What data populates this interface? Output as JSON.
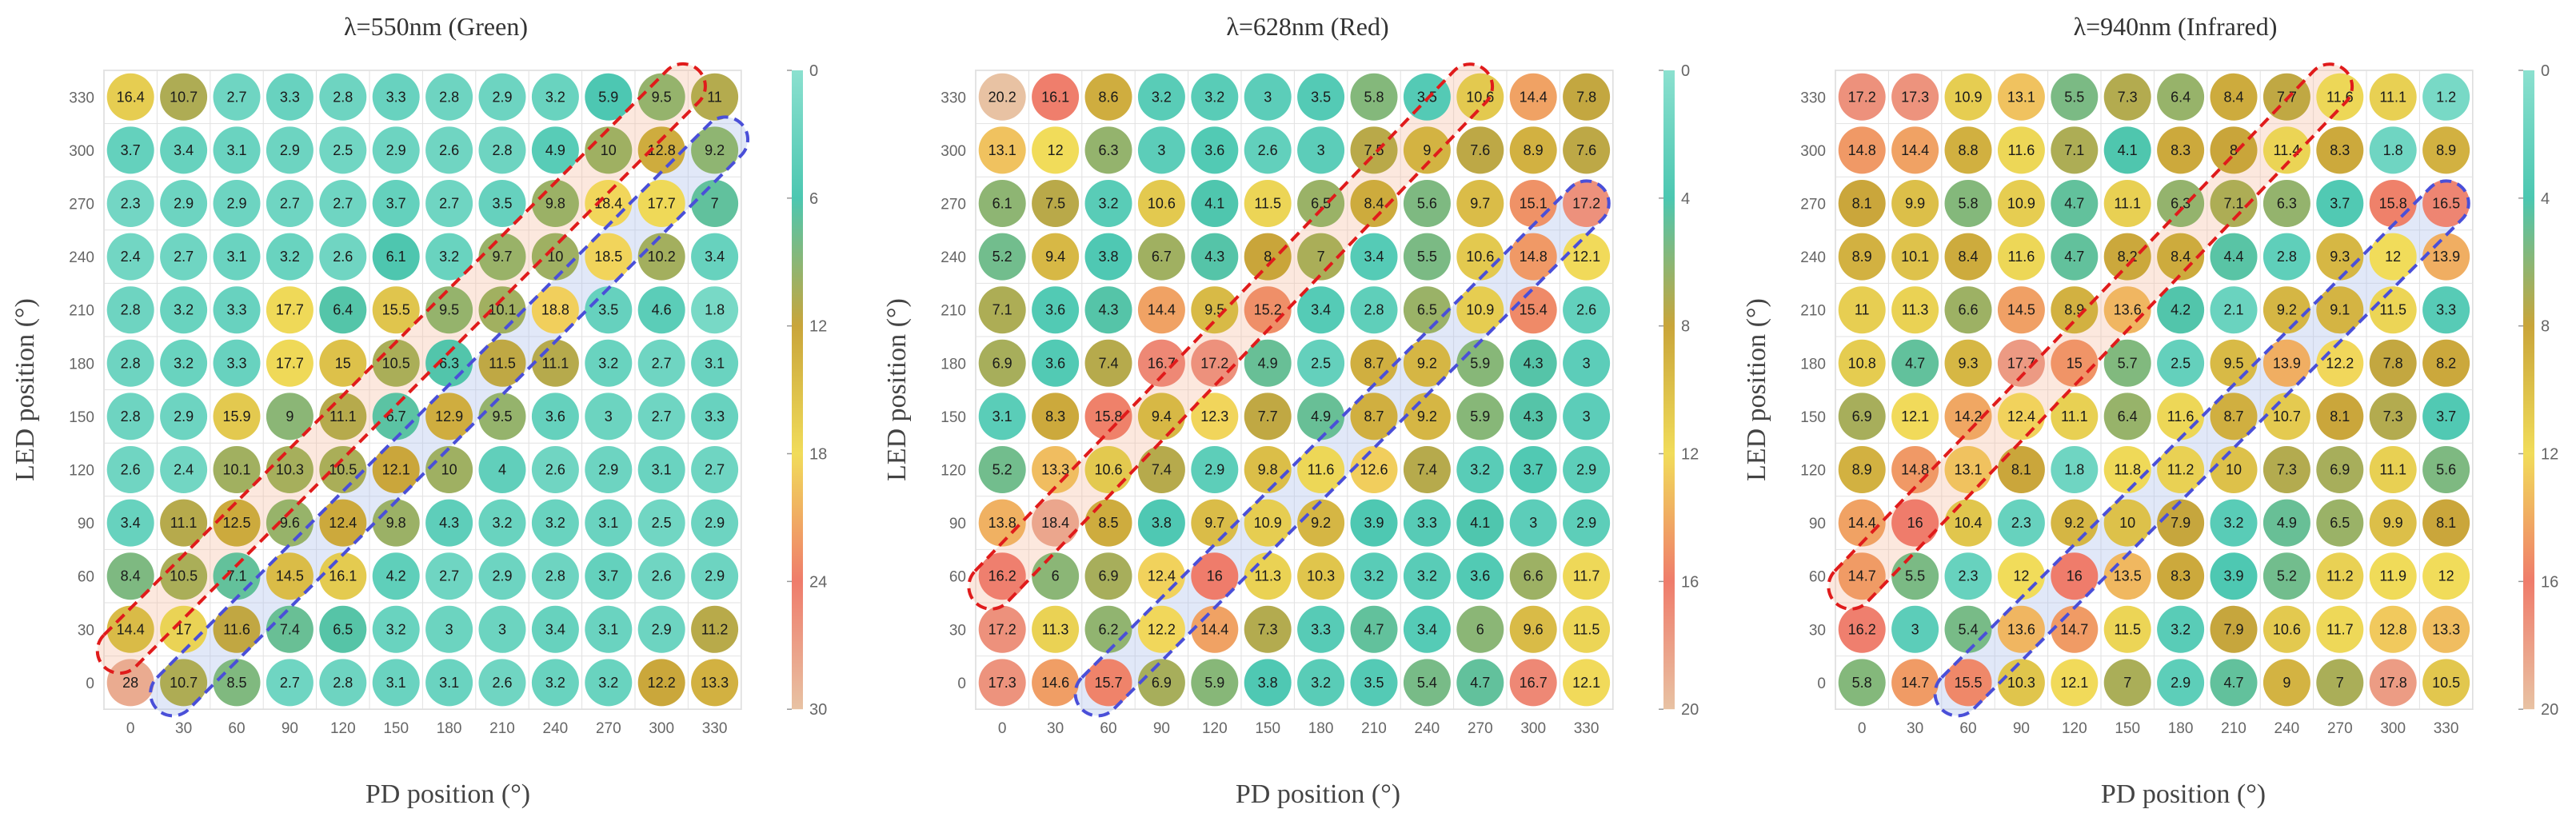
{
  "chart_data": [
    {
      "type": "heatmap",
      "title": "λ=550nm (Green)",
      "xlabel": "PD position (°)",
      "ylabel": "LED position (°)",
      "x": [
        "0",
        "30",
        "60",
        "90",
        "120",
        "150",
        "180",
        "210",
        "240",
        "270",
        "300",
        "330"
      ],
      "y": [
        "0",
        "30",
        "60",
        "90",
        "120",
        "150",
        "180",
        "210",
        "240",
        "270",
        "300",
        "330"
      ],
      "colorbar": {
        "min": 0,
        "max": 30,
        "ticks": [
          "0",
          "6",
          "12",
          "18",
          "24",
          "30"
        ]
      },
      "values": [
        [
          28,
          10.7,
          8.5,
          2.7,
          2.8,
          3.1,
          3.1,
          2.6,
          3.2,
          3.2,
          12.2,
          13.3
        ],
        [
          14.4,
          17,
          11.6,
          7.4,
          6.5,
          3.2,
          3,
          3,
          3.4,
          3.1,
          2.9,
          11.2
        ],
        [
          8.4,
          10.5,
          7.1,
          14.5,
          16.1,
          4.2,
          2.7,
          2.9,
          2.8,
          3.7,
          2.6,
          2.9
        ],
        [
          3.4,
          11.1,
          12.5,
          9.6,
          12.4,
          9.8,
          4.3,
          3.2,
          3.2,
          3.1,
          2.5,
          2.9
        ],
        [
          2.6,
          2.4,
          10.1,
          10.3,
          10.5,
          12.1,
          10,
          4,
          2.6,
          2.9,
          3.1,
          2.7
        ],
        [
          2.8,
          2.9,
          15.9,
          9,
          11.1,
          6.7,
          12.9,
          9.5,
          3.6,
          3,
          2.7,
          3.3
        ],
        [
          2.8,
          3.2,
          3.3,
          17.7,
          15,
          10.5,
          6.3,
          11.5,
          11.1,
          3.2,
          2.7,
          3.1
        ],
        [
          2.8,
          3.2,
          3.3,
          17.7,
          6.4,
          15.5,
          9.5,
          10.1,
          18.8,
          3.5,
          4.6,
          1.8
        ],
        [
          2.4,
          2.7,
          3.1,
          3.2,
          2.6,
          6.1,
          3.2,
          9.7,
          10,
          18.5,
          10.2,
          3.4
        ],
        [
          2.3,
          2.9,
          2.9,
          2.7,
          2.7,
          3.7,
          2.7,
          3.5,
          9.8,
          18.4,
          17.7,
          7
        ],
        [
          3.7,
          3.4,
          3.1,
          2.9,
          2.5,
          2.9,
          2.6,
          2.8,
          4.9,
          10,
          12.8,
          9.2
        ],
        [
          16.4,
          10.7,
          2.7,
          3.3,
          2.8,
          3.3,
          2.8,
          2.9,
          3.2,
          5.9,
          9.5,
          11
        ]
      ]
    },
    {
      "type": "heatmap",
      "title": "λ=628nm (Red)",
      "xlabel": "PD position (°)",
      "ylabel": "LED position (°)",
      "x": [
        "0",
        "30",
        "60",
        "90",
        "120",
        "150",
        "180",
        "210",
        "240",
        "270",
        "300",
        "330"
      ],
      "y": [
        "0",
        "30",
        "60",
        "90",
        "120",
        "150",
        "180",
        "210",
        "240",
        "270",
        "300",
        "330"
      ],
      "colorbar": {
        "min": 0,
        "max": 20,
        "ticks": [
          "0",
          "4",
          "8",
          "12",
          "16",
          "20"
        ]
      },
      "values": [
        [
          17.3,
          14.6,
          15.7,
          6.9,
          5.9,
          3.8,
          3.2,
          3.5,
          5.4,
          4.7,
          16.7,
          12.1
        ],
        [
          17.2,
          11.3,
          6.2,
          12.2,
          14.4,
          7.3,
          3.3,
          4.7,
          3.4,
          6,
          9.6,
          11.5
        ],
        [
          16.2,
          6,
          6.9,
          12.4,
          16,
          11.3,
          10.3,
          3.2,
          3.2,
          3.6,
          6.6,
          11.7
        ],
        [
          13.8,
          18.4,
          8.5,
          3.8,
          9.7,
          10.9,
          9.2,
          3.9,
          3.3,
          4.1,
          3,
          2.9
        ],
        [
          5.2,
          13.3,
          10.6,
          7.4,
          2.9,
          9.8,
          11.6,
          12.6,
          7.4,
          3.2,
          3.7,
          2.9
        ],
        [
          3.1,
          8.3,
          15.8,
          9.4,
          12.3,
          7.7,
          4.9,
          8.7,
          9.2,
          5.9,
          4.3,
          3
        ],
        [
          6.9,
          3.6,
          7.4,
          16.7,
          17.2,
          4.9,
          2.5,
          8.7,
          9.2,
          5.9,
          4.3,
          3
        ],
        [
          7.1,
          3.6,
          4.3,
          14.4,
          9.5,
          15.2,
          3.4,
          2.8,
          6.5,
          10.9,
          15.4,
          2.6
        ],
        [
          5.2,
          9.4,
          3.8,
          6.7,
          4.3,
          8,
          7,
          3.4,
          5.5,
          10.6,
          14.8,
          12.1
        ],
        [
          6.1,
          7.5,
          3.2,
          10.6,
          4.1,
          11.5,
          6.5,
          8.4,
          5.6,
          9.7,
          15.1,
          17.2
        ],
        [
          13.1,
          12,
          6.3,
          3,
          3.6,
          2.6,
          3,
          7.5,
          9,
          7.6,
          8.9,
          7.6
        ],
        [
          20.2,
          16.1,
          8.6,
          3.2,
          3.2,
          3,
          3.5,
          5.8,
          3.5,
          10.6,
          14.4,
          7.8
        ]
      ]
    },
    {
      "type": "heatmap",
      "title": "λ=940nm (Infrared)",
      "xlabel": "PD position (°)",
      "ylabel": "LED position (°)",
      "x": [
        "0",
        "30",
        "60",
        "90",
        "120",
        "150",
        "180",
        "210",
        "240",
        "270",
        "300",
        "330"
      ],
      "y": [
        "0",
        "30",
        "60",
        "90",
        "120",
        "150",
        "180",
        "210",
        "240",
        "270",
        "300",
        "330"
      ],
      "colorbar": {
        "min": 0,
        "max": 20,
        "ticks": [
          "0",
          "4",
          "8",
          "12",
          "16",
          "20"
        ]
      },
      "values": [
        [
          5.8,
          14.7,
          15.5,
          10.3,
          12.1,
          7,
          2.9,
          4.7,
          9,
          7,
          17.8,
          10.5
        ],
        [
          16.2,
          3,
          5.4,
          13.6,
          14.7,
          11.5,
          3.2,
          7.9,
          10.6,
          11.7,
          12.8,
          13.3
        ],
        [
          14.7,
          5.5,
          2.3,
          12,
          16,
          13.5,
          8.3,
          3.9,
          5.2,
          11.2,
          11.9,
          12
        ],
        [
          14.4,
          16,
          10.4,
          2.3,
          9.2,
          10,
          7.9,
          3.2,
          4.9,
          6.5,
          9.9,
          8.1
        ],
        [
          8.9,
          14.8,
          13.1,
          8.1,
          1.8,
          11.8,
          11.2,
          10,
          7.3,
          6.9,
          11.1,
          5.6
        ],
        [
          6.9,
          12.1,
          14.2,
          12.4,
          11.1,
          6.4,
          11.6,
          8.7,
          10.7,
          8.1,
          7.3,
          3.7
        ],
        [
          10.8,
          4.7,
          9.3,
          17.7,
          15,
          5.7,
          2.5,
          9.5,
          13.9,
          12.2,
          7.8,
          8.2
        ],
        [
          11,
          11.3,
          6.6,
          14.5,
          8.9,
          13.6,
          4.2,
          2.1,
          9.2,
          9.1,
          11.5,
          3.3
        ],
        [
          8.9,
          10.1,
          8.4,
          11.6,
          4.7,
          8.2,
          8.4,
          4.4,
          2.8,
          9.3,
          12,
          13.9
        ],
        [
          8.1,
          9.9,
          5.8,
          10.9,
          4.7,
          11.1,
          6.3,
          7.1,
          6.3,
          3.7,
          15.8,
          16.5
        ],
        [
          14.8,
          14.4,
          8.8,
          11.6,
          7.1,
          4.1,
          8.3,
          8,
          11.4,
          8.3,
          1.8,
          8.9
        ],
        [
          17.2,
          17.3,
          10.9,
          13.1,
          5.5,
          7.3,
          6.4,
          8.4,
          7.7,
          11.6,
          11.1,
          1.2
        ]
      ]
    }
  ]
}
